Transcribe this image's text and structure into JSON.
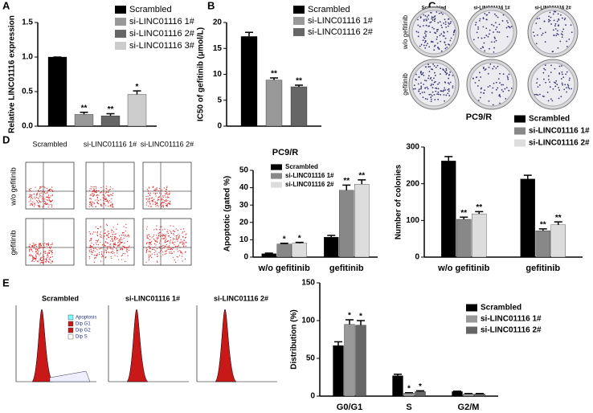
{
  "panels": {
    "letters": [
      "A",
      "B",
      "C",
      "D",
      "E"
    ],
    "plates": {
      "columns": [
        "Scrambled",
        "si-LINC01116 1#",
        "si-LINC01116 2#"
      ],
      "rows": [
        "w/o gefitinib",
        "gefitinib"
      ]
    },
    "flow": {
      "columns": [
        "Scrambled",
        "si-LINC01116 1#",
        "si-LINC01116 2#"
      ],
      "rows": [
        "w/o gefitinib",
        "gefitinib"
      ]
    },
    "cycle": {
      "titles": [
        "Scrambled",
        "si-LINC01116 1#",
        "si-LINC01116 2#"
      ],
      "legend": [
        "Apoptosis",
        "Dip G1",
        "Dip G2",
        "Dip S"
      ]
    }
  },
  "chart_data": [
    {
      "type": "bar",
      "ylabel": "Relative LINC01116 expression",
      "categories": [
        null
      ],
      "ylim": [
        0,
        1.5
      ],
      "yticks": [
        {
          "value": 0,
          "label": "0.0"
        },
        {
          "value": 0.5,
          "label": "0.5"
        },
        {
          "value": 1,
          "label": "1.0"
        },
        {
          "value": 1.5,
          "label": "1.5"
        }
      ],
      "series": [
        {
          "name": "Scrambled",
          "color": "#000000",
          "values": [
            1.0
          ],
          "errors": [
            0
          ]
        },
        {
          "name": "si-LINC01116 1#",
          "color": "#999999",
          "values": [
            0.17
          ],
          "errors": [
            0.03
          ],
          "labels": [
            "**"
          ]
        },
        {
          "name": "si-LINC01116 2#",
          "color": "#666666",
          "values": [
            0.15
          ],
          "errors": [
            0.03
          ],
          "labels": [
            "**"
          ]
        },
        {
          "name": "si-LINC01116 3#",
          "color": "#cccccc",
          "values": [
            0.46
          ],
          "errors": [
            0.05
          ],
          "labels": [
            "*"
          ]
        }
      ]
    },
    {
      "type": "bar",
      "ylabel": "IC50 of gefitinib (μmol/L)",
      "categories": [
        null
      ],
      "ylim": [
        0,
        20
      ],
      "yticks": [
        0,
        5,
        10,
        15,
        20
      ],
      "series": [
        {
          "name": "Scrambled",
          "color": "#000000",
          "values": [
            17.3
          ],
          "errors": [
            0.8
          ]
        },
        {
          "name": "si-LINC01116 1#",
          "color": "#999999",
          "values": [
            8.9
          ],
          "errors": [
            0.4
          ],
          "labels": [
            "**"
          ]
        },
        {
          "name": "si-LINC01116 2#",
          "color": "#666666",
          "values": [
            7.6
          ],
          "errors": [
            0.3
          ],
          "labels": [
            "**"
          ]
        }
      ]
    },
    {
      "type": "bar",
      "title": "PC9/R",
      "ylabel": "Number of colonies",
      "categories": [
        "w/o gefitinib",
        "gefitinib"
      ],
      "ylim": [
        0,
        300
      ],
      "yticks": [
        0,
        100,
        200,
        300
      ],
      "series": [
        {
          "name": "Scrambled",
          "color": "#000000",
          "values": [
            262,
            213
          ],
          "errors": [
            12,
            10
          ]
        },
        {
          "name": "si-LINC01116 1#",
          "color": "#888888",
          "values": [
            103,
            72
          ],
          "errors": [
            6,
            5
          ],
          "labels": [
            "**",
            "**"
          ]
        },
        {
          "name": "si-LINC01116 2#",
          "color": "#dddddd",
          "values": [
            118,
            88
          ],
          "errors": [
            6,
            8
          ],
          "labels": [
            "**",
            "**"
          ]
        }
      ]
    },
    {
      "type": "bar",
      "title": "PC9/R",
      "ylabel": "Apoptotic (gated %)",
      "categories": [
        "w/o gefitinib",
        "gefitinib"
      ],
      "ylim": [
        0,
        50
      ],
      "yticks": [
        0,
        10,
        20,
        30,
        40,
        50
      ],
      "series": [
        {
          "name": "Scrambled",
          "color": "#000000",
          "values": [
            2,
            11.5
          ],
          "errors": [
            0.3,
            1
          ]
        },
        {
          "name": "si-LINC01116 1#",
          "color": "#888888",
          "values": [
            7.5,
            38.5
          ],
          "errors": [
            0.5,
            3
          ],
          "labels": [
            "*",
            "**"
          ]
        },
        {
          "name": "si-LINC01116 2#",
          "color": "#dddddd",
          "values": [
            8,
            42
          ],
          "errors": [
            0.5,
            2.5
          ],
          "labels": [
            "*",
            "**"
          ]
        }
      ]
    },
    {
      "type": "bar",
      "ylabel": "Distribution (%)",
      "categories": [
        "G0/G1",
        "S",
        "G2/M"
      ],
      "ylim": [
        0,
        150
      ],
      "yticks": [
        0,
        50,
        100,
        150
      ],
      "series": [
        {
          "name": "Scrambled",
          "color": "#000000",
          "values": [
            67,
            27,
            6
          ],
          "errors": [
            5,
            2,
            0.5
          ]
        },
        {
          "name": "si-LINC01116 1#",
          "color": "#999999",
          "values": [
            95,
            4,
            3
          ],
          "errors": [
            6,
            0.5,
            0.5
          ],
          "labels": [
            "*",
            "*",
            null
          ]
        },
        {
          "name": "si-LINC01116 2#",
          "color": "#666666",
          "values": [
            94,
            6,
            3
          ],
          "errors": [
            6,
            1,
            0.5
          ],
          "labels": [
            "*",
            "*",
            null
          ]
        }
      ]
    }
  ]
}
